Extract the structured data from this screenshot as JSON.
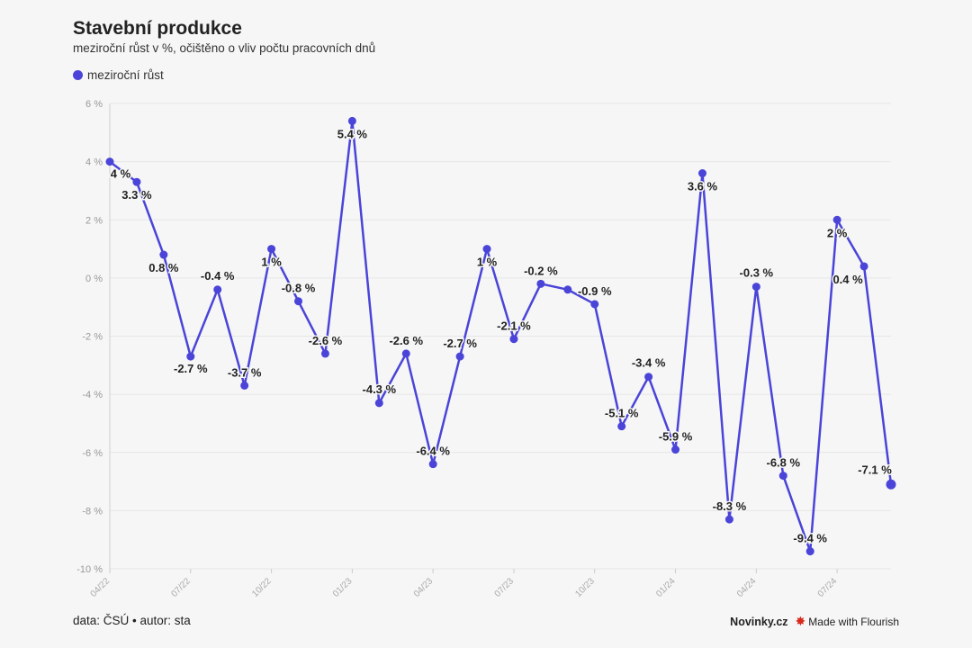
{
  "title": "Stavební produkce",
  "subtitle": "meziroční růst v %, očištěno o vliv počtu pracovních dnů",
  "legend": {
    "label": "meziroční růst",
    "color": "#4a44d8"
  },
  "footer": {
    "source": "data: ČSÚ • autor: sta",
    "brand": "Novinky.cz",
    "flourish": "Made with Flourish",
    "flourish_icon": "flourish-burst-icon",
    "flourish_color": "#d62a1c"
  },
  "chart_data": {
    "type": "line",
    "series": [
      {
        "name": "meziroční růst",
        "color": "#4a44d8",
        "values": [
          4,
          3.3,
          0.8,
          -2.7,
          -0.4,
          -3.7,
          1,
          -0.8,
          -2.6,
          5.4,
          -4.3,
          -2.6,
          -6.4,
          -2.7,
          1,
          -2.1,
          -0.2,
          -0.4,
          -0.9,
          -5.1,
          -3.4,
          -5.9,
          3.6,
          -8.3,
          -0.3,
          -6.8,
          -9.4,
          2,
          0.4,
          -7.1
        ],
        "labels": [
          "4 %",
          "3.3 %",
          "0.8 %",
          "-2.7 %",
          "-0.4 %",
          "-3.7 %",
          "1 %",
          "-0.8 %",
          "-2.6 %",
          "5.4 %",
          "-4.3 %",
          "-2.6 %",
          "-6.4 %",
          "-2.7 %",
          "1 %",
          "-2.1 %",
          "-0.2 %",
          "",
          "-0.9 %",
          "-5.1 %",
          "-3.4 %",
          "-5.9 %",
          "3.6 %",
          "-8.3 %",
          "-0.3 %",
          "-6.8 %",
          "-9.4 %",
          "2 %",
          "0.4 %",
          "-7.1 %"
        ]
      }
    ],
    "x": [
      "04/22",
      "05/22",
      "06/22",
      "07/22",
      "08/22",
      "09/22",
      "10/22",
      "11/22",
      "12/22",
      "01/23",
      "02/23",
      "03/23",
      "04/23",
      "05/23",
      "06/23",
      "07/23",
      "08/23",
      "09/23",
      "10/23",
      "11/23",
      "12/23",
      "01/24",
      "02/24",
      "03/24",
      "04/24",
      "05/24",
      "06/24",
      "07/24",
      "08/24",
      "09/24"
    ],
    "x_ticks": [
      "04/22",
      "07/22",
      "10/22",
      "01/23",
      "04/23",
      "07/23",
      "10/23",
      "01/24",
      "04/24",
      "07/24"
    ],
    "y_ticks": [
      "6 %",
      "4 %",
      "2 %",
      "0 %",
      "-2 %",
      "-4 %",
      "-6 %",
      "-8 %",
      "-10 %"
    ],
    "ylim": [
      -10,
      6
    ],
    "grid": true,
    "legend_position": "top-left"
  }
}
